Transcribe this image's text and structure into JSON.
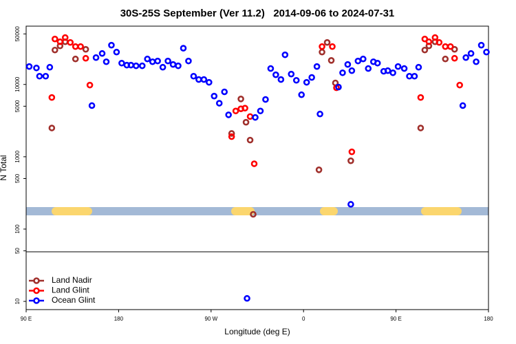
{
  "chart_data": {
    "type": "scatter",
    "title": "30S-25S September (Ver 11.2)   2014-09-06 to 2024-07-31",
    "x_label": "Longitude (deg E)",
    "y_label": "N Total",
    "xlim": [
      90,
      540
    ],
    "xticks": [
      {
        "value": 90,
        "label": "90 E"
      },
      {
        "value": 180,
        "label": "180"
      },
      {
        "value": 270,
        "label": "90 W"
      },
      {
        "value": 360,
        "label": "0"
      },
      {
        "value": 450,
        "label": "90 E"
      },
      {
        "value": 540,
        "label": "180"
      }
    ],
    "ylim": [
      7.7,
      64000
    ],
    "log_y": true,
    "yticks": [
      10,
      50,
      100,
      500,
      1000,
      5000,
      10000,
      50000
    ],
    "legend": "lower left",
    "series": [
      {
        "name": "Land Nadir",
        "color": "#a0302c",
        "x": [
          115,
          118,
          123,
          128,
          138,
          148,
          290,
          299,
          304,
          308,
          311,
          375,
          378,
          383,
          387,
          391,
          406,
          474,
          478,
          482,
          488,
          498,
          507
        ],
        "values": [
          2500,
          29900,
          34100,
          38900,
          22500,
          30600,
          2100,
          6300,
          3000,
          1700,
          160,
          660,
          28000,
          38100,
          21500,
          10500,
          880,
          2500,
          29900,
          34100,
          38900,
          22500,
          30600
        ]
      },
      {
        "name": "Land Glint",
        "color": "#ff0000",
        "x": [
          115,
          118,
          123,
          128,
          133,
          138,
          143,
          148,
          152,
          290,
          294,
          299,
          303,
          308,
          312,
          378,
          388,
          392,
          407,
          474,
          478,
          482,
          488,
          492,
          498,
          503,
          507,
          512
        ],
        "values": [
          6600,
          42500,
          38900,
          44500,
          38100,
          33400,
          33400,
          23000,
          9800,
          1900,
          4300,
          4600,
          4700,
          3600,
          800,
          33400,
          33400,
          9000,
          1170,
          6600,
          42500,
          38900,
          44500,
          38100,
          33400,
          33400,
          23000,
          9800
        ]
      },
      {
        "name": "Ocean Glint",
        "color": "#0000ff",
        "x": [
          93,
          100,
          103,
          109,
          113,
          154,
          158,
          164,
          168,
          173,
          178,
          183,
          188,
          192,
          197,
          203,
          208,
          213,
          218,
          223,
          228,
          233,
          238,
          243,
          248,
          253,
          258,
          263,
          268,
          273,
          278,
          283,
          287,
          305,
          313,
          318,
          323,
          328,
          333,
          338,
          342,
          348,
          353,
          358,
          363,
          368,
          373,
          376,
          394,
          398,
          403,
          406,
          407,
          413,
          418,
          423,
          428,
          432,
          438,
          442,
          447,
          452,
          458,
          463,
          468,
          472,
          515,
          518,
          523,
          528,
          533,
          538
        ],
        "values": [
          17700,
          16900,
          13000,
          13000,
          17300,
          5100,
          23500,
          26800,
          20600,
          34900,
          28000,
          19700,
          18500,
          18500,
          18100,
          18100,
          22500,
          20600,
          21100,
          17300,
          21100,
          18900,
          18100,
          31700,
          21100,
          13000,
          11700,
          11700,
          10700,
          6900,
          5500,
          7900,
          3800,
          11,
          3500,
          4300,
          6200,
          16600,
          13600,
          11700,
          25700,
          13900,
          11400,
          7200,
          10700,
          12500,
          17700,
          3900,
          9200,
          14500,
          18900,
          220,
          15500,
          21100,
          22500,
          16600,
          20600,
          19700,
          15200,
          15500,
          14500,
          17700,
          16600,
          13000,
          13000,
          17300,
          5100,
          23500,
          26800,
          20600,
          34900,
          28000
        ]
      }
    ]
  }
}
